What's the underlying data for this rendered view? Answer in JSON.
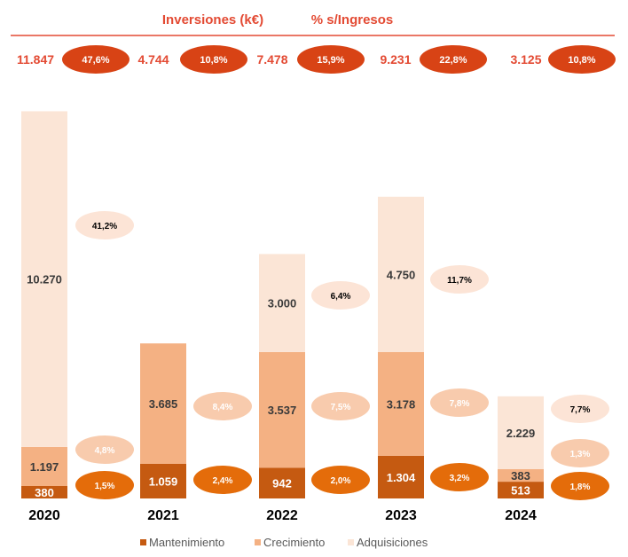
{
  "header": {
    "left_title": "Inversiones (k€)",
    "right_title": "% s/Ingresos",
    "text_color": "#e34a33",
    "line_color": "#e34a33"
  },
  "summary": [
    {
      "total": "11.847",
      "pct": "47,6%"
    },
    {
      "total": "4.744",
      "pct": "10,8%"
    },
    {
      "total": "7.478",
      "pct": "15,9%"
    },
    {
      "total": "9.231",
      "pct": "22,8%"
    },
    {
      "total": "3.125",
      "pct": "10,8%"
    }
  ],
  "colors": {
    "mantenimiento": "#c55a11",
    "crecimiento": "#f4b183",
    "adquisiciones": "#fbe5d6",
    "pill_total": "#d84315",
    "pill_mantenimiento": "#e46c0a",
    "pill_crecimiento": "#f8cbad",
    "pill_adquisiciones": "#fce4d6",
    "year_text": "#000000"
  },
  "chart_data": {
    "type": "bar",
    "stacked": true,
    "categories": [
      "2020",
      "2021",
      "2022",
      "2023",
      "2024"
    ],
    "series": [
      {
        "key": "mantenimiento",
        "name": "Mantenimiento",
        "values": [
          380,
          1059,
          942,
          1304,
          513
        ],
        "labels": [
          "380",
          "1.059",
          "942",
          "1.304",
          "513"
        ],
        "pct_labels": [
          "1,5%",
          "2,4%",
          "2,0%",
          "3,2%",
          "1,8%"
        ]
      },
      {
        "key": "crecimiento",
        "name": "Crecimiento",
        "values": [
          1197,
          3685,
          3537,
          3178,
          383
        ],
        "labels": [
          "1.197",
          "3.685",
          "3.537",
          "3.178",
          "383"
        ],
        "pct_labels": [
          "4,8%",
          "8,4%",
          "7,5%",
          "7,8%",
          "1,3%"
        ]
      },
      {
        "key": "adquisiciones",
        "name": "Adquisiciones",
        "values": [
          10270,
          0,
          3000,
          4750,
          2229
        ],
        "labels": [
          "10.270",
          "",
          "3.000",
          "4.750",
          "2.229"
        ],
        "pct_labels": [
          "41,2%",
          "",
          "6,4%",
          "11,7%",
          "7,7%"
        ]
      }
    ],
    "legend": "bottom"
  }
}
